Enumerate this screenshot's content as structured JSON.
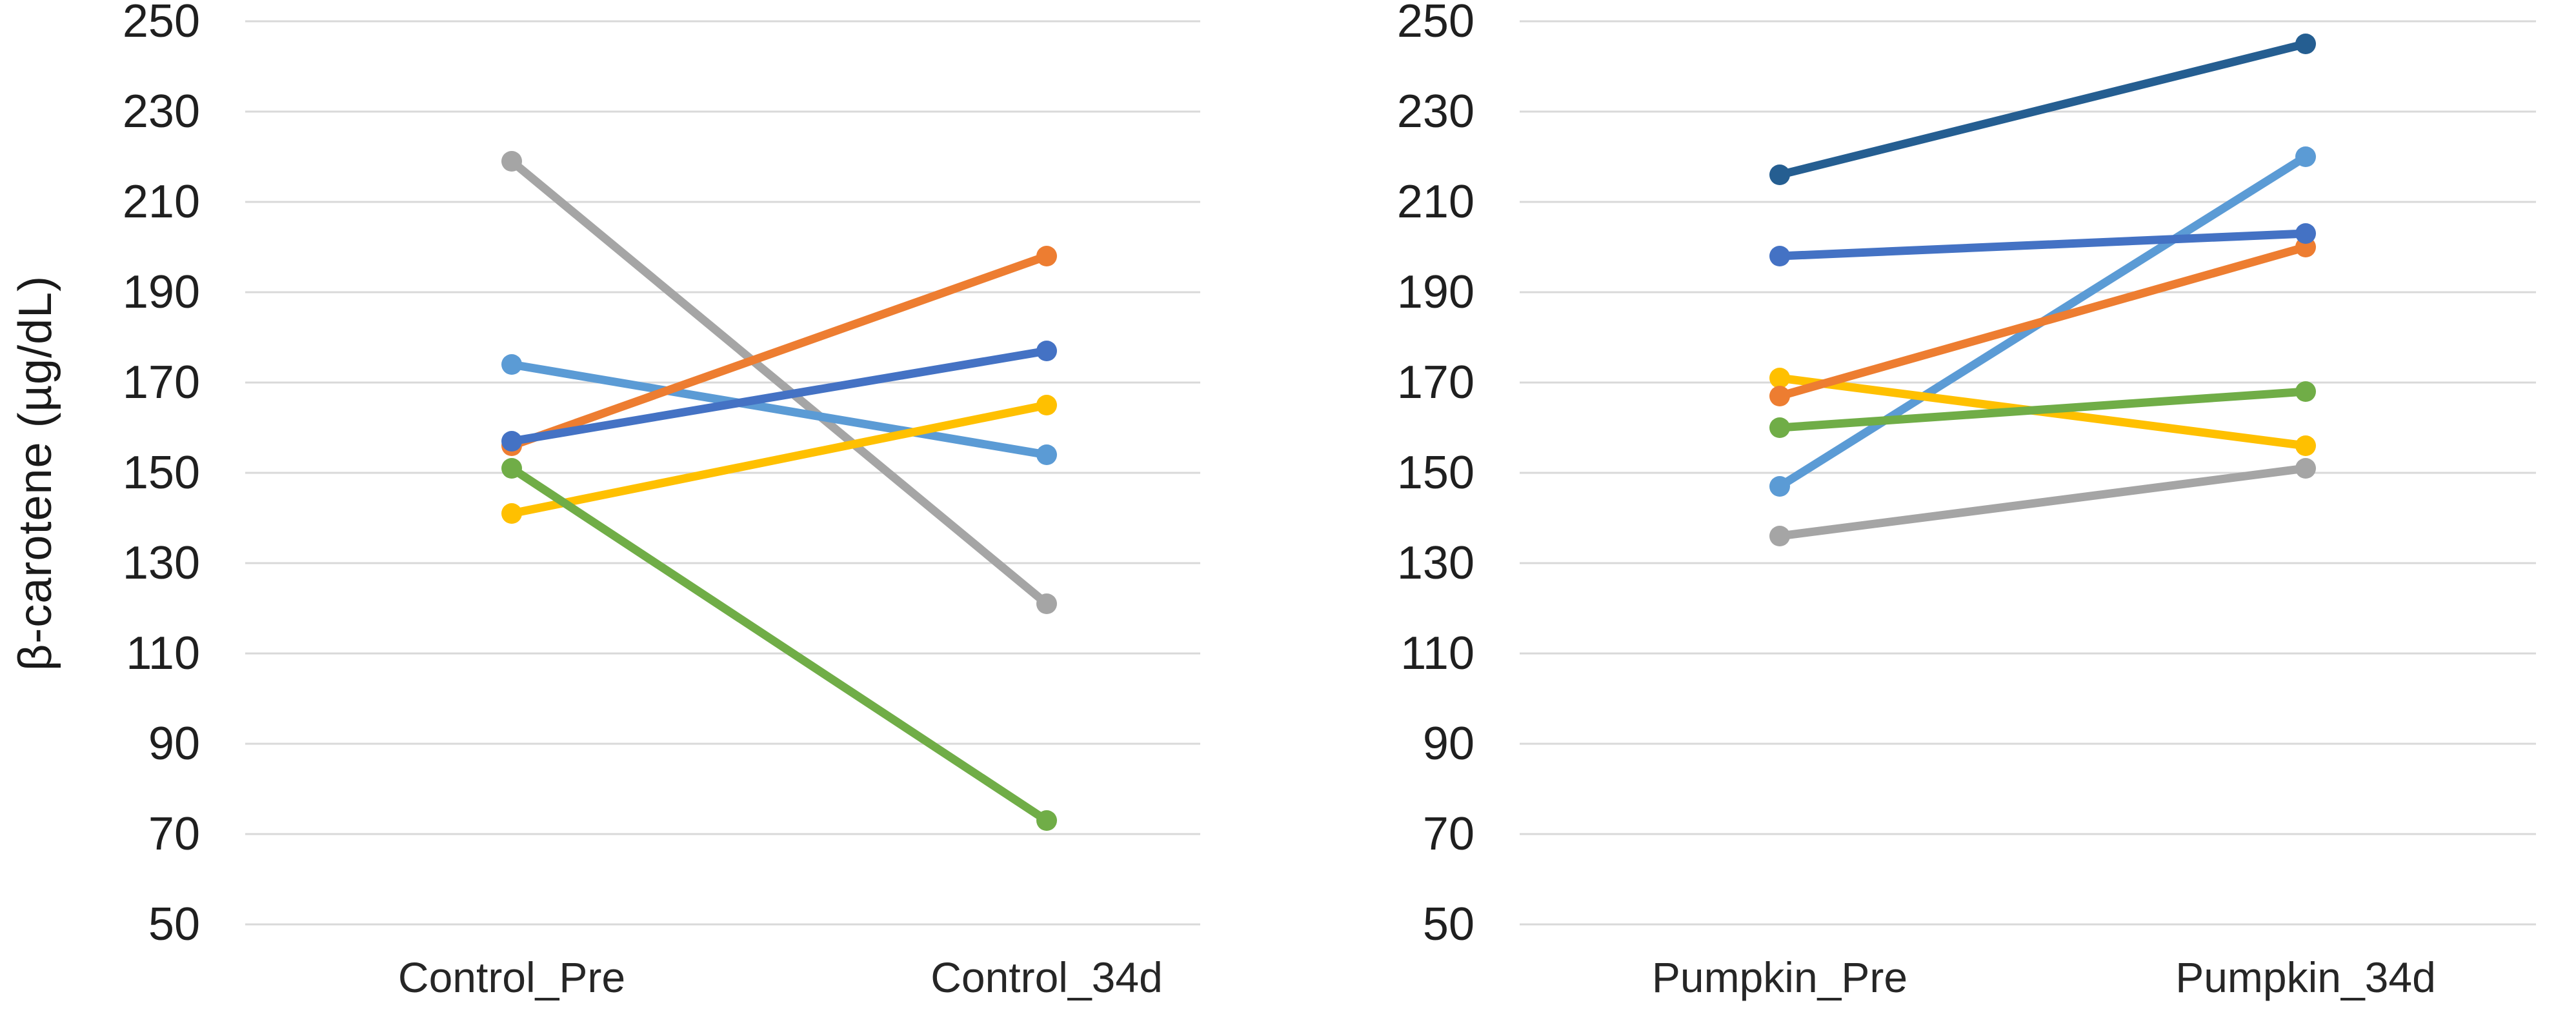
{
  "figure": {
    "kind": "paired slope chart, two panels, no legend, white background"
  },
  "axis": {
    "ylabel": "β-carotene (µg/dL)",
    "ylim": [
      50,
      250
    ],
    "ytick_step": 20,
    "yticks": [
      250,
      230,
      210,
      190,
      170,
      150,
      130,
      110,
      90,
      70,
      50
    ],
    "gridline_color": "#D9D9D9",
    "tick_label_color": "#1F1F1F"
  },
  "chart_data": [
    {
      "type": "line",
      "title": "",
      "ylabel": "β-carotene (µg/dL)",
      "ylim": [
        50,
        250
      ],
      "grid": true,
      "legend": "none",
      "categories": [
        "Control_Pre",
        "Control_34d"
      ],
      "series": [
        {
          "name": "gray",
          "color": "#A5A5A5",
          "values": [
            219,
            121
          ]
        },
        {
          "name": "light-blue",
          "color": "#5B9BD5",
          "values": [
            174,
            154
          ]
        },
        {
          "name": "yellow",
          "color": "#FFC000",
          "values": [
            141,
            165
          ]
        },
        {
          "name": "green",
          "color": "#70AD47",
          "values": [
            151,
            73
          ]
        },
        {
          "name": "orange",
          "color": "#ED7D31",
          "values": [
            156,
            198
          ]
        },
        {
          "name": "blue",
          "color": "#4472C4",
          "values": [
            157,
            177
          ]
        }
      ]
    },
    {
      "type": "line",
      "title": "",
      "ylabel": "",
      "ylim": [
        50,
        250
      ],
      "grid": true,
      "legend": "none",
      "categories": [
        "Pumpkin_Pre",
        "Pumpkin_34d"
      ],
      "series": [
        {
          "name": "gray",
          "color": "#A5A5A5",
          "values": [
            136,
            151
          ]
        },
        {
          "name": "light-blue",
          "color": "#5B9BD5",
          "values": [
            147,
            220
          ]
        },
        {
          "name": "yellow",
          "color": "#FFC000",
          "values": [
            171,
            156
          ]
        },
        {
          "name": "green",
          "color": "#70AD47",
          "values": [
            160,
            168
          ]
        },
        {
          "name": "orange",
          "color": "#ED7D31",
          "values": [
            167,
            200
          ]
        },
        {
          "name": "blue",
          "color": "#4472C4",
          "values": [
            198,
            203
          ]
        },
        {
          "name": "navy",
          "color": "#255E91",
          "values": [
            216,
            245
          ]
        }
      ]
    }
  ]
}
